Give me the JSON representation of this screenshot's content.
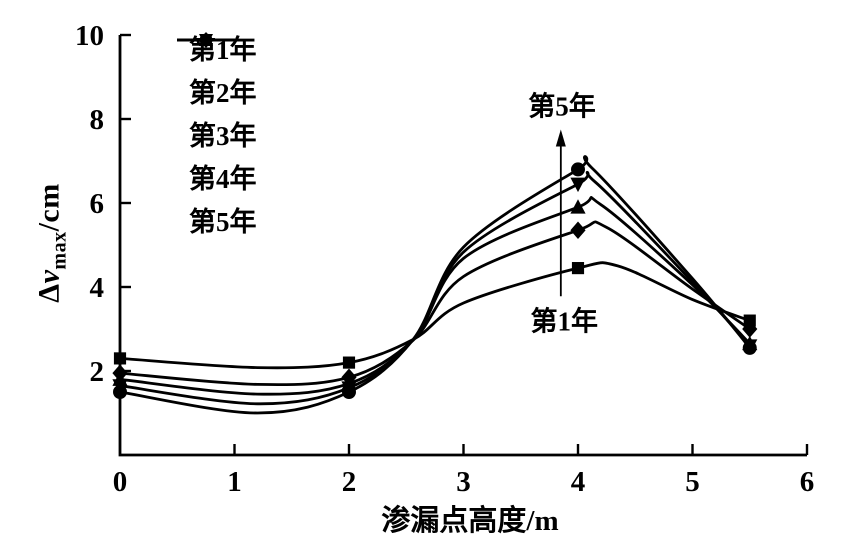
{
  "colors": {
    "ink": "#000000",
    "background": "#ffffff"
  },
  "chart_data": {
    "type": "line",
    "title": "",
    "xlabel": "渗漏点高度/m",
    "ylabel": "Δvmax/cm",
    "ylabel_parts": {
      "delta": "Δ",
      "variable": "v",
      "subscript": "max",
      "unit": "/cm"
    },
    "xlim": [
      0,
      6
    ],
    "ylim": [
      0,
      10
    ],
    "x_ticks": [
      0,
      1,
      2,
      3,
      4,
      5,
      6
    ],
    "y_ticks": [
      2,
      4,
      6,
      8,
      10
    ],
    "grid": false,
    "legend_position": "upper-left-inside",
    "x": [
      0,
      2,
      4,
      5.5
    ],
    "series": [
      {
        "name": "第1年",
        "marker": "square",
        "values": [
          2.3,
          2.2,
          4.45,
          3.2
        ],
        "curve": [
          [
            0,
            2.3
          ],
          [
            1.2,
            2.08
          ],
          [
            2,
            2.2
          ],
          [
            2.56,
            2.75
          ],
          [
            3.0,
            3.62
          ],
          [
            4,
            4.45
          ],
          [
            4.35,
            4.5
          ],
          [
            5,
            3.7
          ],
          [
            5.5,
            3.2
          ]
        ]
      },
      {
        "name": "第2年",
        "marker": "diamond",
        "values": [
          1.95,
          1.85,
          5.35,
          3.0
        ],
        "curve": [
          [
            0,
            1.95
          ],
          [
            1.2,
            1.68
          ],
          [
            2,
            1.85
          ],
          [
            2.56,
            2.73
          ],
          [
            3.0,
            4.25
          ],
          [
            4,
            5.35
          ],
          [
            4.25,
            5.42
          ],
          [
            5,
            3.95
          ],
          [
            5.5,
            3.0
          ]
        ]
      },
      {
        "name": "第3年",
        "marker": "triangle-up",
        "values": [
          1.8,
          1.7,
          5.9,
          2.65
        ],
        "curve": [
          [
            0,
            1.8
          ],
          [
            1.2,
            1.45
          ],
          [
            2,
            1.7
          ],
          [
            2.56,
            2.74
          ],
          [
            3.0,
            4.68
          ],
          [
            4,
            5.9
          ],
          [
            4.2,
            5.96
          ],
          [
            5,
            4.05
          ],
          [
            5.5,
            2.65
          ]
        ]
      },
      {
        "name": "第4年",
        "marker": "triangle-down",
        "values": [
          1.65,
          1.6,
          6.45,
          2.6
        ],
        "curve": [
          [
            0,
            1.65
          ],
          [
            1.2,
            1.22
          ],
          [
            2,
            1.6
          ],
          [
            2.56,
            2.74
          ],
          [
            3.0,
            4.83
          ],
          [
            4,
            6.45
          ],
          [
            4.15,
            6.5
          ],
          [
            5,
            4.12
          ],
          [
            5.5,
            2.6
          ]
        ]
      },
      {
        "name": "第5年",
        "marker": "circle",
        "values": [
          1.5,
          1.5,
          6.8,
          2.55
        ],
        "curve": [
          [
            0,
            1.5
          ],
          [
            1.2,
            1.0
          ],
          [
            2,
            1.5
          ],
          [
            2.56,
            2.75
          ],
          [
            3.0,
            4.95
          ],
          [
            4,
            6.8
          ],
          [
            4.12,
            6.84
          ],
          [
            5,
            4.2
          ],
          [
            5.5,
            2.55
          ]
        ]
      }
    ],
    "annotations": {
      "top": {
        "text": "第5年",
        "x": 3.86,
        "y": 8.35
      },
      "bottom": {
        "text": "第1年",
        "x": 3.88,
        "y": 3.25
      },
      "arrow": {
        "x": 3.85,
        "y_from": 3.78,
        "y_to": 7.75
      }
    }
  }
}
